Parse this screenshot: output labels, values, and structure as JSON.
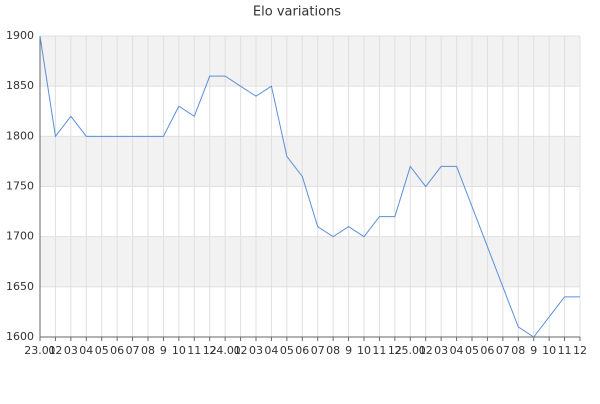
{
  "chart_data": {
    "type": "line",
    "title": "Elo variations",
    "categories": [
      "23.01",
      "02",
      "03",
      "04",
      "05",
      "06",
      "07",
      "08",
      "9",
      "10",
      "11",
      "12",
      "24.01",
      "02",
      "03",
      "04",
      "05",
      "06",
      "07",
      "08",
      "9",
      "10",
      "11",
      "12",
      "25.01",
      "02",
      "03",
      "04",
      "05",
      "06",
      "07",
      "08",
      "9",
      "10",
      "11",
      "12"
    ],
    "values": [
      1900,
      1800,
      1820,
      1800,
      1800,
      1800,
      1800,
      1800,
      1800,
      1830,
      1820,
      1860,
      1860,
      1850,
      1840,
      1850,
      1780,
      1760,
      1710,
      1700,
      1710,
      1700,
      1720,
      1720,
      1770,
      1750,
      1770,
      1770,
      1730,
      1690,
      1650,
      1610,
      1600,
      1620,
      1640,
      1640
    ],
    "color": "#5b8fd9",
    "ylim": [
      1600,
      1900
    ],
    "yticks": [
      1600,
      1650,
      1700,
      1750,
      1800,
      1850,
      1900
    ],
    "grid": true,
    "bands": true
  }
}
